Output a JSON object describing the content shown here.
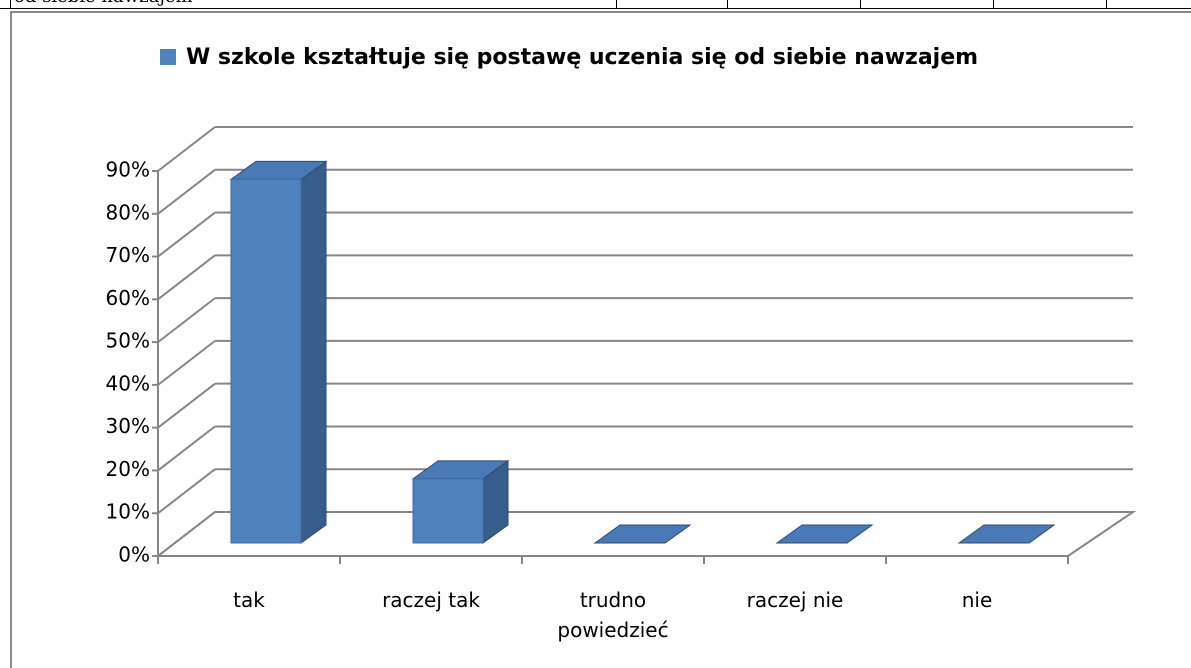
{
  "table_text": "od siebie nawzajem",
  "chart_data": {
    "type": "bar3d",
    "categories": [
      "tak",
      "raczej tak",
      "trudno powiedzieć",
      "raczej nie",
      "nie"
    ],
    "series": [
      {
        "name": "W szkole kształtuje się postawę uczenia się od siebie nawzajem",
        "color": "#4f81bd",
        "values": [
          85,
          15,
          0,
          0,
          0
        ]
      }
    ],
    "ylim": [
      0,
      90
    ],
    "yticks": [
      {
        "value": 0,
        "label": "0%"
      },
      {
        "value": 10,
        "label": "10%"
      },
      {
        "value": 20,
        "label": "20%"
      },
      {
        "value": 30,
        "label": "30%"
      },
      {
        "value": 40,
        "label": "40%"
      },
      {
        "value": 50,
        "label": "50%"
      },
      {
        "value": 60,
        "label": "60%"
      },
      {
        "value": 70,
        "label": "70%"
      },
      {
        "value": 80,
        "label": "80%"
      },
      {
        "value": 90,
        "label": "90%"
      }
    ],
    "grid": true,
    "legend": "top"
  }
}
